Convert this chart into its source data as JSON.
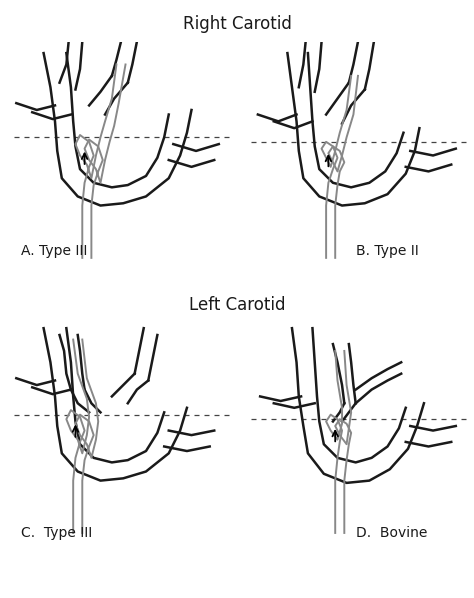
{
  "title_top": "Right Carotid",
  "title_bottom": "Left Carotid",
  "label_A": "A. Type III",
  "label_B": "B. Type II",
  "label_C": "C.  Type III",
  "label_D": "D.  Bovine",
  "bg_color": "#ffffff",
  "line_color": "#1a1a1a",
  "catheter_color": "#888888",
  "dashed_color": "#444444",
  "lw_vessel": 1.8,
  "lw_catheter": 1.4,
  "fontsize_title": 12,
  "fontsize_label": 10
}
